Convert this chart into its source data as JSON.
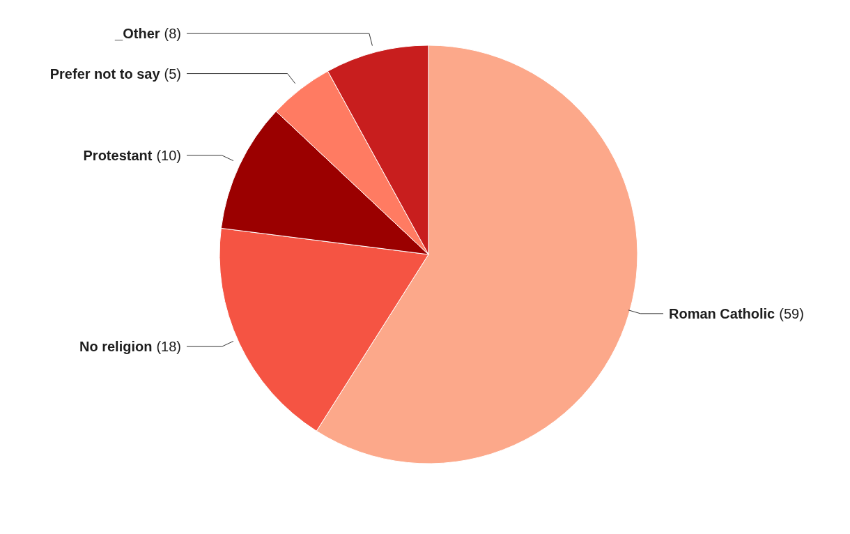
{
  "chart_data": {
    "type": "pie",
    "categories": [
      "Roman Catholic",
      "No religion",
      "Protestant",
      "Prefer not to say",
      "_Other"
    ],
    "values": [
      59,
      18,
      10,
      5,
      8
    ],
    "colors": [
      "#fca88a",
      "#f55443",
      "#9b0000",
      "#ff7b62",
      "#c81e1e"
    ],
    "value_labels": [
      "(59)",
      "(18)",
      "(10)",
      "(5)",
      "(8)"
    ]
  }
}
